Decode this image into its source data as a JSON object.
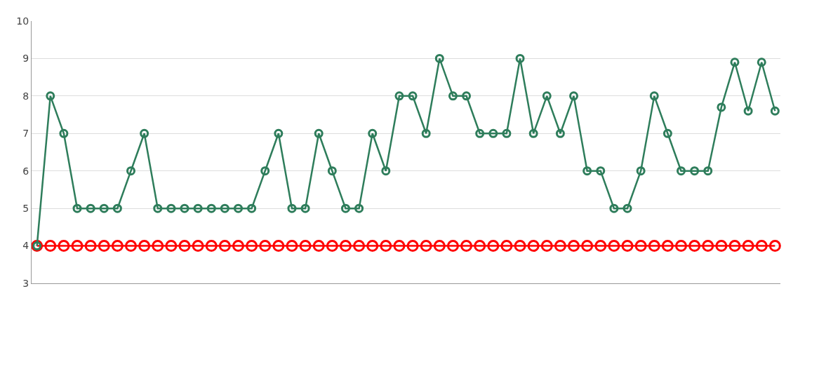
{
  "chart_data": {
    "type": "line",
    "categories": [
      null,
      null,
      null,
      null,
      null,
      null,
      null,
      null,
      null,
      null,
      null,
      null,
      null,
      null,
      null,
      null,
      null,
      null,
      null,
      null,
      null,
      null,
      null,
      null,
      null,
      null,
      null,
      null,
      null,
      null,
      null,
      null,
      null,
      null,
      null,
      null,
      null,
      null,
      null,
      null,
      null,
      null,
      null,
      null,
      null,
      null,
      null,
      null,
      null,
      null,
      null,
      null,
      null,
      null,
      null,
      null
    ],
    "series": [
      {
        "color": "#2e7d5b",
        "values": [
          4,
          8,
          7,
          5,
          5,
          5,
          5,
          6,
          7,
          5,
          5,
          5,
          5,
          5,
          5,
          5,
          5,
          6,
          7,
          5,
          5,
          7,
          6,
          5,
          5,
          7,
          6,
          8,
          8,
          7,
          9,
          8,
          8,
          7,
          7,
          7,
          9,
          7,
          8,
          7,
          8,
          6,
          6,
          5,
          5,
          6,
          8,
          7,
          6,
          6,
          6,
          7.7,
          8.9,
          7.6,
          8.9,
          7.6
        ]
      },
      {
        "color": "#ff0000",
        "values": [
          4,
          4,
          4,
          4,
          4,
          4,
          4,
          4,
          4,
          4,
          4,
          4,
          4,
          4,
          4,
          4,
          4,
          4,
          4,
          4,
          4,
          4,
          4,
          4,
          4,
          4,
          4,
          4,
          4,
          4,
          4,
          4,
          4,
          4,
          4,
          4,
          4,
          4,
          4,
          4,
          4,
          4,
          4,
          4,
          4,
          4,
          4,
          4,
          4,
          4,
          4,
          4,
          4,
          4,
          4,
          4
        ]
      }
    ],
    "ylim": [
      3,
      10
    ],
    "yticks": [
      3,
      4,
      5,
      6,
      7,
      8,
      9,
      10
    ],
    "grid": "y",
    "marker": "circle",
    "line_style": "solid",
    "legend": false,
    "tick_labels": "y"
  }
}
